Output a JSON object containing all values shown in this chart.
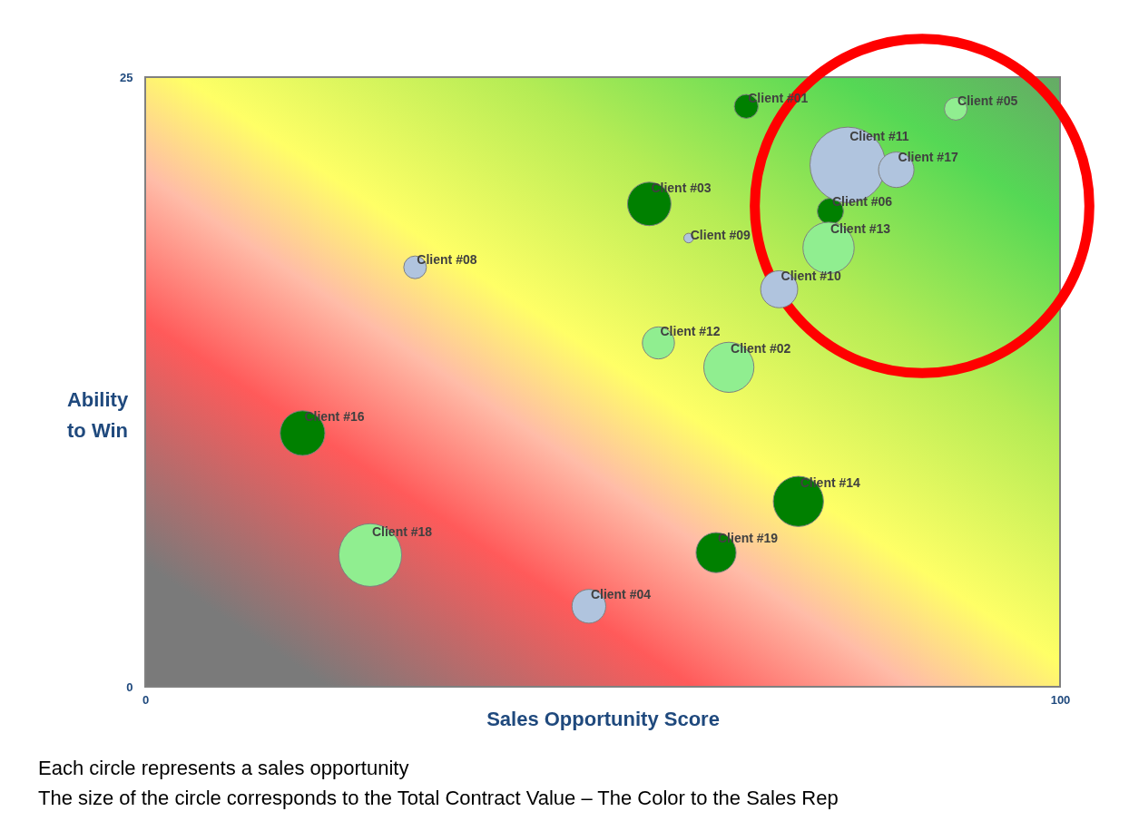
{
  "chart_data": {
    "type": "bubble",
    "xlabel": "Sales Opportunity Score",
    "ylabel": "Ability\nto Win",
    "xlim": [
      0,
      100
    ],
    "ylim": [
      0,
      25
    ],
    "xticks": [
      0,
      100
    ],
    "yticks": [
      0,
      25
    ],
    "legend": false,
    "series": [
      {
        "color": "#008000",
        "x": [
          65.7,
          55.1,
          74.9,
          17.2,
          71.4,
          62.4
        ],
        "values": [
          23.8,
          19.8,
          19.5,
          10.4,
          7.6,
          5.5
        ],
        "sizes": [
          0.1,
          0.33,
          0.12,
          0.35,
          0.44,
          0.28
        ]
      },
      {
        "color": "#90ee90",
        "x": [
          88.6,
          74.7,
          56.1,
          63.8,
          24.6
        ],
        "values": [
          23.7,
          18.0,
          14.1,
          13.1,
          5.4
        ],
        "sizes": [
          0.09,
          0.46,
          0.18,
          0.44,
          0.69
        ]
      },
      {
        "color": "#b0c4de",
        "x": [
          76.8,
          82.1,
          59.4,
          29.5,
          69.3,
          48.5
        ],
        "values": [
          21.4,
          21.2,
          18.4,
          17.2,
          16.3,
          3.3
        ],
        "sizes": [
          1,
          0.22,
          0.016,
          0.09,
          0.24,
          0.2
        ]
      }
    ],
    "annotations": [
      {
        "text": "Client #01",
        "x": 65.7,
        "y": 23.8
      },
      {
        "text": "Client #03",
        "x": 55.1,
        "y": 19.8
      },
      {
        "text": "Client #06",
        "x": 74.9,
        "y": 19.5
      },
      {
        "text": "Client #16",
        "x": 17.2,
        "y": 10.4
      },
      {
        "text": "Client #14",
        "x": 71.4,
        "y": 7.6
      },
      {
        "text": "Client #19",
        "x": 62.4,
        "y": 5.5
      },
      {
        "text": "Client #05",
        "x": 88.6,
        "y": 23.7
      },
      {
        "text": "Client #13",
        "x": 74.7,
        "y": 18.0
      },
      {
        "text": "Client #12",
        "x": 56.1,
        "y": 14.1
      },
      {
        "text": "Client #02",
        "x": 63.8,
        "y": 13.1
      },
      {
        "text": "Client #18",
        "x": 24.6,
        "y": 5.4
      },
      {
        "text": "Client #11",
        "x": 76.8,
        "y": 21.4
      },
      {
        "text": "Client #17",
        "x": 82.1,
        "y": 21.2
      },
      {
        "text": "Client #09",
        "x": 59.4,
        "y": 18.4
      },
      {
        "text": "Client #08",
        "x": 29.5,
        "y": 17.2
      },
      {
        "text": "Client #10",
        "x": 69.3,
        "y": 16.3
      },
      {
        "text": "Client #04",
        "x": 48.5,
        "y": 3.3
      },
      "Each circle represents a sales opportunity",
      "The size of the circle corresponds to the Total Contract Value – The Color to the Sales Rep"
    ]
  }
}
